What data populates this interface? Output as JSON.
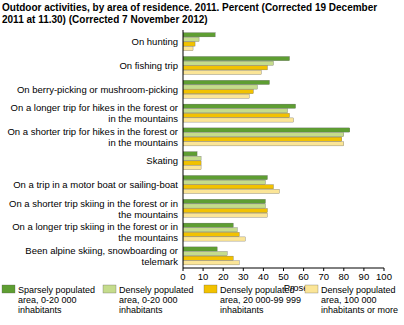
{
  "chart_data": {
    "type": "bar",
    "orientation": "horizontal",
    "title": "Outdoor activities, by area of residence. 2011. Percent (Corrected 19 December 2011 at 11.30) (Corrected 7 November 2012)",
    "x_label": "Prosent",
    "categories": [
      "On hunting",
      "On fishing trip",
      "On berry-picking or mushroom-picking",
      "On a longer trip for hikes in the forest or in the mountains",
      "On a shorter trip for hikes in the forest or in the mountains",
      "Skating",
      "On a trip in a motor boat or sailing-boat",
      "On a shorter trip skiing in the forest or in the mountains",
      "On a longer trip skiing in the forest or in the mountains",
      "Been alpine skiing, snowboarding or telemark"
    ],
    "series": [
      {
        "name": "Sparsely populated area, 0-20 000 inhabitants",
        "color": "#5e9e32",
        "values": [
          16,
          53,
          43,
          56,
          83,
          7,
          42,
          41,
          25,
          17
        ]
      },
      {
        "name": "Densely populated area, 0-20 000 inhabitants",
        "color": "#c5dc8c",
        "values": [
          8,
          45,
          37,
          52,
          80,
          9,
          41,
          41,
          27,
          22
        ]
      },
      {
        "name": "Densely populated area, 20 000-99 999 inhabitants",
        "color": "#f2c200",
        "values": [
          6,
          42,
          35,
          53,
          79,
          9,
          45,
          42,
          28,
          25
        ]
      },
      {
        "name": "Densely populated area, 100 000 inhabitants or more",
        "color": "#fbe597",
        "values": [
          5,
          39,
          33,
          55,
          80,
          9,
          48,
          42,
          31,
          28
        ]
      }
    ],
    "xlim": [
      0,
      100
    ],
    "xticks": [
      0,
      10,
      20,
      30,
      40,
      50,
      60,
      70,
      80,
      90,
      100
    ],
    "grid": false,
    "legend": "bottom"
  }
}
